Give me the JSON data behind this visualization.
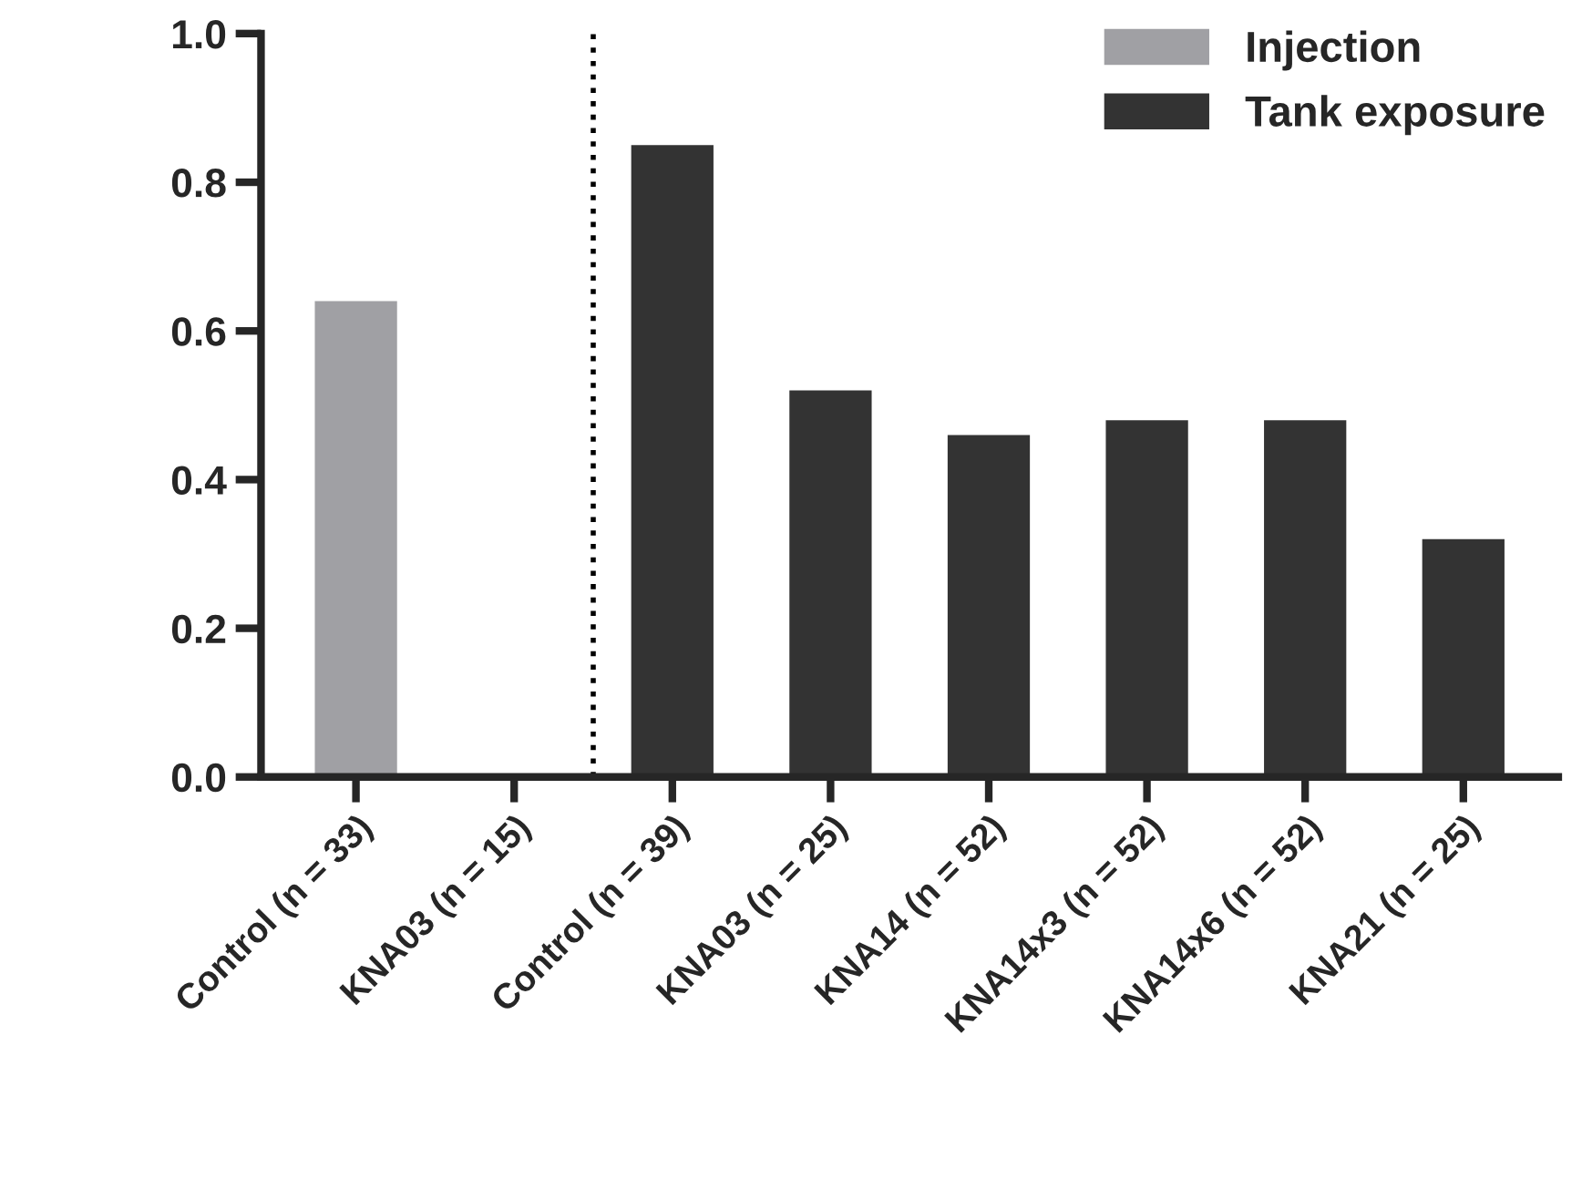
{
  "chart_data": {
    "type": "bar",
    "categories": [
      "Control (n = 33)",
      "KNA03 (n = 15)",
      "Control (n = 39)",
      "KNA03 (n = 25)",
      "KNA14 (n = 52)",
      "KNA14x3 (n = 52)",
      "KNA14x6 (n = 52)",
      "KNA21 (n = 25)"
    ],
    "series": [
      {
        "name": "Injection",
        "color": "#a0a0a4",
        "values": [
          0.64,
          0,
          null,
          null,
          null,
          null,
          null,
          null
        ]
      },
      {
        "name": "Tank exposure",
        "color": "#333333",
        "values": [
          null,
          null,
          0.85,
          0.52,
          0.46,
          0.48,
          0.48,
          0.32
        ]
      }
    ],
    "ylim": [
      0,
      1.0
    ],
    "yticks": [
      {
        "value": 0,
        "label": "0.0"
      },
      {
        "value": 0.2,
        "label": "0.2"
      },
      {
        "value": 0.4,
        "label": "0.4"
      },
      {
        "value": 0.6,
        "label": "0.6"
      },
      {
        "value": 0.8,
        "label": "0.8"
      },
      {
        "value": 1.0,
        "label": "1.0"
      }
    ],
    "grid": false,
    "legend": "top right"
  }
}
